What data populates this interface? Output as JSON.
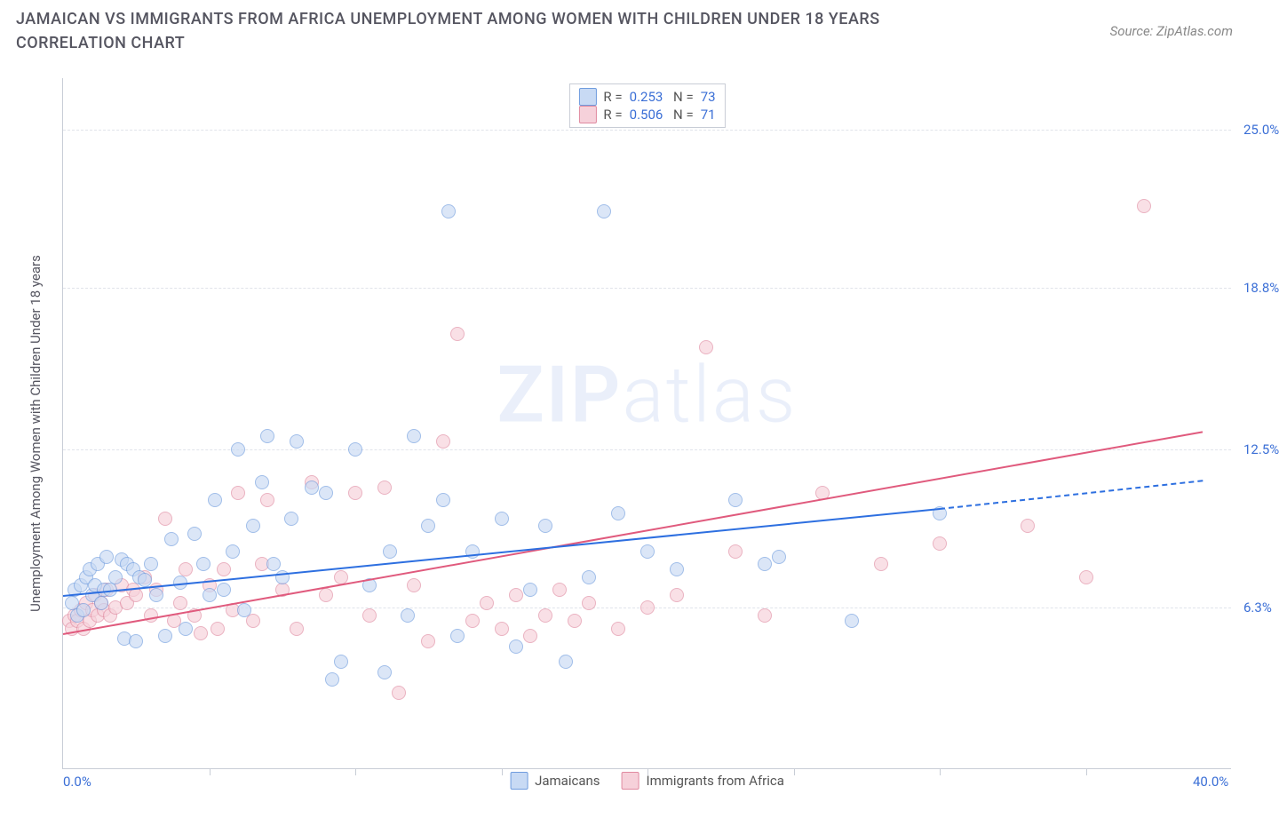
{
  "title": "JAMAICAN VS IMMIGRANTS FROM AFRICA UNEMPLOYMENT AMONG WOMEN WITH CHILDREN UNDER 18 YEARS CORRELATION CHART",
  "source": "Source: ZipAtlas.com",
  "watermark_a": "ZIP",
  "watermark_b": "atlas",
  "chart": {
    "type": "scatter",
    "ylabel": "Unemployment Among Women with Children Under 18 years",
    "xlim": [
      0,
      40
    ],
    "ylim": [
      0,
      27
    ],
    "x_ticks_major": [
      0,
      40
    ],
    "x_tick_labels": [
      "0.0%",
      "40.0%"
    ],
    "x_ticks_minor": [
      5,
      10,
      15,
      20,
      25,
      30,
      35
    ],
    "y_gridlines": [
      6.3,
      12.5,
      18.8,
      25.0
    ],
    "y_tick_labels": [
      "6.3%",
      "12.5%",
      "18.8%",
      "25.0%"
    ],
    "background_color": "#ffffff",
    "grid_color": "#e0e3ea",
    "axis_color": "#c8cdd6",
    "point_radius": 8,
    "point_stroke_width": 1.5,
    "series": [
      {
        "name": "Jamaicans",
        "fill": "#c8daf4",
        "stroke": "#6f9cde",
        "fill_opacity": 0.65,
        "R": "0.253",
        "N": "73",
        "trend": {
          "x0": 0,
          "y0": 6.8,
          "x1": 30,
          "y1": 10.2,
          "color": "#2d6fe0",
          "dash_from_x": 30,
          "dash_to_x": 39,
          "dash_to_y": 11.3
        }
      },
      {
        "name": "Immigrants from Africa",
        "fill": "#f6d1da",
        "stroke": "#e08aa0",
        "fill_opacity": 0.65,
        "R": "0.506",
        "N": "71",
        "trend": {
          "x0": 0,
          "y0": 5.3,
          "x1": 39,
          "y1": 13.2,
          "color": "#e05a7d"
        }
      }
    ],
    "points_s0": [
      [
        0.3,
        6.5
      ],
      [
        0.4,
        7.0
      ],
      [
        0.5,
        6.0
      ],
      [
        0.6,
        7.2
      ],
      [
        0.7,
        6.2
      ],
      [
        0.8,
        7.5
      ],
      [
        0.9,
        7.8
      ],
      [
        1.0,
        6.8
      ],
      [
        1.1,
        7.2
      ],
      [
        1.2,
        8.0
      ],
      [
        1.3,
        6.5
      ],
      [
        1.4,
        7.0
      ],
      [
        1.5,
        8.3
      ],
      [
        1.6,
        7.0
      ],
      [
        1.8,
        7.5
      ],
      [
        2.0,
        8.2
      ],
      [
        2.1,
        5.1
      ],
      [
        2.2,
        8.0
      ],
      [
        2.4,
        7.8
      ],
      [
        2.5,
        5.0
      ],
      [
        2.6,
        7.5
      ],
      [
        2.8,
        7.4
      ],
      [
        3.0,
        8.0
      ],
      [
        3.2,
        6.8
      ],
      [
        3.5,
        5.2
      ],
      [
        3.7,
        9.0
      ],
      [
        4.0,
        7.3
      ],
      [
        4.2,
        5.5
      ],
      [
        4.5,
        9.2
      ],
      [
        4.8,
        8.0
      ],
      [
        5.0,
        6.8
      ],
      [
        5.2,
        10.5
      ],
      [
        5.5,
        7.0
      ],
      [
        5.8,
        8.5
      ],
      [
        6.0,
        12.5
      ],
      [
        6.2,
        6.2
      ],
      [
        6.5,
        9.5
      ],
      [
        6.8,
        11.2
      ],
      [
        7.0,
        13.0
      ],
      [
        7.2,
        8.0
      ],
      [
        7.5,
        7.5
      ],
      [
        7.8,
        9.8
      ],
      [
        8.0,
        12.8
      ],
      [
        8.5,
        11.0
      ],
      [
        9.0,
        10.8
      ],
      [
        9.2,
        3.5
      ],
      [
        9.5,
        4.2
      ],
      [
        10.0,
        12.5
      ],
      [
        10.5,
        7.2
      ],
      [
        11.0,
        3.8
      ],
      [
        11.2,
        8.5
      ],
      [
        11.8,
        6.0
      ],
      [
        12.0,
        13.0
      ],
      [
        12.5,
        9.5
      ],
      [
        13.0,
        10.5
      ],
      [
        13.2,
        21.8
      ],
      [
        13.5,
        5.2
      ],
      [
        14.0,
        8.5
      ],
      [
        15.0,
        9.8
      ],
      [
        15.5,
        4.8
      ],
      [
        16.0,
        7.0
      ],
      [
        16.5,
        9.5
      ],
      [
        17.2,
        4.2
      ],
      [
        18.0,
        7.5
      ],
      [
        18.5,
        21.8
      ],
      [
        19.0,
        10.0
      ],
      [
        20.0,
        8.5
      ],
      [
        21.0,
        7.8
      ],
      [
        23.0,
        10.5
      ],
      [
        24.0,
        8.0
      ],
      [
        24.5,
        8.3
      ],
      [
        27.0,
        5.8
      ],
      [
        30.0,
        10.0
      ]
    ],
    "points_s1": [
      [
        0.2,
        5.8
      ],
      [
        0.3,
        5.5
      ],
      [
        0.4,
        6.0
      ],
      [
        0.5,
        5.8
      ],
      [
        0.6,
        6.2
      ],
      [
        0.7,
        5.5
      ],
      [
        0.8,
        6.5
      ],
      [
        0.9,
        5.8
      ],
      [
        1.0,
        6.2
      ],
      [
        1.1,
        6.8
      ],
      [
        1.2,
        6.0
      ],
      [
        1.3,
        6.5
      ],
      [
        1.4,
        6.2
      ],
      [
        1.5,
        7.0
      ],
      [
        1.6,
        6.0
      ],
      [
        1.8,
        6.3
      ],
      [
        2.0,
        7.2
      ],
      [
        2.2,
        6.5
      ],
      [
        2.4,
        7.0
      ],
      [
        2.5,
        6.8
      ],
      [
        2.8,
        7.5
      ],
      [
        3.0,
        6.0
      ],
      [
        3.2,
        7.0
      ],
      [
        3.5,
        9.8
      ],
      [
        3.8,
        5.8
      ],
      [
        4.0,
        6.5
      ],
      [
        4.2,
        7.8
      ],
      [
        4.5,
        6.0
      ],
      [
        4.7,
        5.3
      ],
      [
        5.0,
        7.2
      ],
      [
        5.3,
        5.5
      ],
      [
        5.5,
        7.8
      ],
      [
        5.8,
        6.2
      ],
      [
        6.0,
        10.8
      ],
      [
        6.5,
        5.8
      ],
      [
        6.8,
        8.0
      ],
      [
        7.0,
        10.5
      ],
      [
        7.5,
        7.0
      ],
      [
        8.0,
        5.5
      ],
      [
        8.5,
        11.2
      ],
      [
        9.0,
        6.8
      ],
      [
        9.5,
        7.5
      ],
      [
        10.0,
        10.8
      ],
      [
        10.5,
        6.0
      ],
      [
        11.0,
        11.0
      ],
      [
        11.5,
        3.0
      ],
      [
        12.0,
        7.2
      ],
      [
        12.5,
        5.0
      ],
      [
        13.0,
        12.8
      ],
      [
        13.5,
        17.0
      ],
      [
        14.0,
        5.8
      ],
      [
        14.5,
        6.5
      ],
      [
        15.0,
        5.5
      ],
      [
        15.5,
        6.8
      ],
      [
        16.0,
        5.2
      ],
      [
        16.5,
        6.0
      ],
      [
        17.0,
        7.0
      ],
      [
        17.5,
        5.8
      ],
      [
        18.0,
        6.5
      ],
      [
        19.0,
        5.5
      ],
      [
        20.0,
        6.3
      ],
      [
        21.0,
        6.8
      ],
      [
        22.0,
        16.5
      ],
      [
        23.0,
        8.5
      ],
      [
        24.0,
        6.0
      ],
      [
        26.0,
        10.8
      ],
      [
        28.0,
        8.0
      ],
      [
        30.0,
        8.8
      ],
      [
        33.0,
        9.5
      ],
      [
        37.0,
        22.0
      ],
      [
        35.0,
        7.5
      ]
    ]
  },
  "legend_bottom": [
    {
      "label": "Jamaicans",
      "fill": "#c8daf4",
      "stroke": "#6f9cde"
    },
    {
      "label": "Immigrants from Africa",
      "fill": "#f6d1da",
      "stroke": "#e08aa0"
    }
  ]
}
